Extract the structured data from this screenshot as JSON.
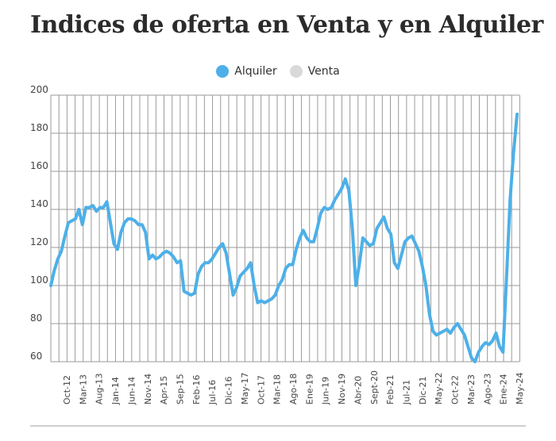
{
  "title": "Indices de oferta en Venta y en Alquiler",
  "legend": [
    {
      "label": "Alquiler",
      "color": "#4db0e8"
    },
    {
      "label": "Venta",
      "color": "#d9d9d9"
    }
  ],
  "chart_data": {
    "type": "line",
    "title": "Indices de oferta en Venta y en Alquiler",
    "xlabel": "",
    "ylabel": "",
    "ylim": [
      60,
      200
    ],
    "yticks": [
      60,
      80,
      100,
      120,
      140,
      160,
      180,
      200
    ],
    "xtick_labels": [
      "Oct-12",
      "Mar-13",
      "Aug-13",
      "Jan-14",
      "Jun-14",
      "Nov-14",
      "Apr-15",
      "Sep-15",
      "Feb-16",
      "Jul-16",
      "Dic-16",
      "May-17",
      "Oct-17",
      "Mar-18",
      "Ago-18",
      "Ene-19",
      "Jun-19",
      "Nov-19",
      "Abr-20",
      "Sept-20",
      "Feb-21",
      "Jul-21",
      "Dic-21",
      "May-22",
      "Oct-22",
      "Mar-23",
      "Ago-23",
      "Ene-24",
      "May-24"
    ],
    "grid": true,
    "series": [
      {
        "name": "Alquiler",
        "color": "#4db0e8",
        "values": [
          100,
          108,
          114,
          118,
          126,
          133,
          134,
          135,
          140,
          132,
          141,
          141,
          142,
          139,
          141,
          141,
          144,
          133,
          122,
          119,
          128,
          133,
          135,
          135,
          134,
          132,
          132,
          128,
          114,
          116,
          114,
          115,
          117,
          118,
          117,
          115,
          112,
          113,
          97,
          96,
          95,
          96,
          106,
          110,
          112,
          112,
          114,
          117,
          120,
          122,
          117,
          106,
          95,
          99,
          105,
          107,
          109,
          112,
          100,
          91,
          92,
          91,
          92,
          93,
          95,
          100,
          103,
          109,
          111,
          111,
          119,
          125,
          129,
          125,
          123,
          123,
          130,
          138,
          141,
          140,
          141,
          145,
          148,
          151,
          156,
          150,
          130,
          100,
          111,
          125,
          123,
          121,
          122,
          130,
          133,
          136,
          130,
          127,
          112,
          109,
          116,
          123,
          125,
          126,
          122,
          118,
          110,
          100,
          85,
          76,
          74,
          75,
          76,
          77,
          75,
          78,
          80,
          77,
          74,
          68,
          62,
          60,
          65,
          68,
          70,
          69,
          71,
          75,
          68,
          65,
          105,
          145,
          170,
          190
        ]
      },
      {
        "name": "Venta",
        "color": "#d9d9d9",
        "values": []
      }
    ]
  }
}
